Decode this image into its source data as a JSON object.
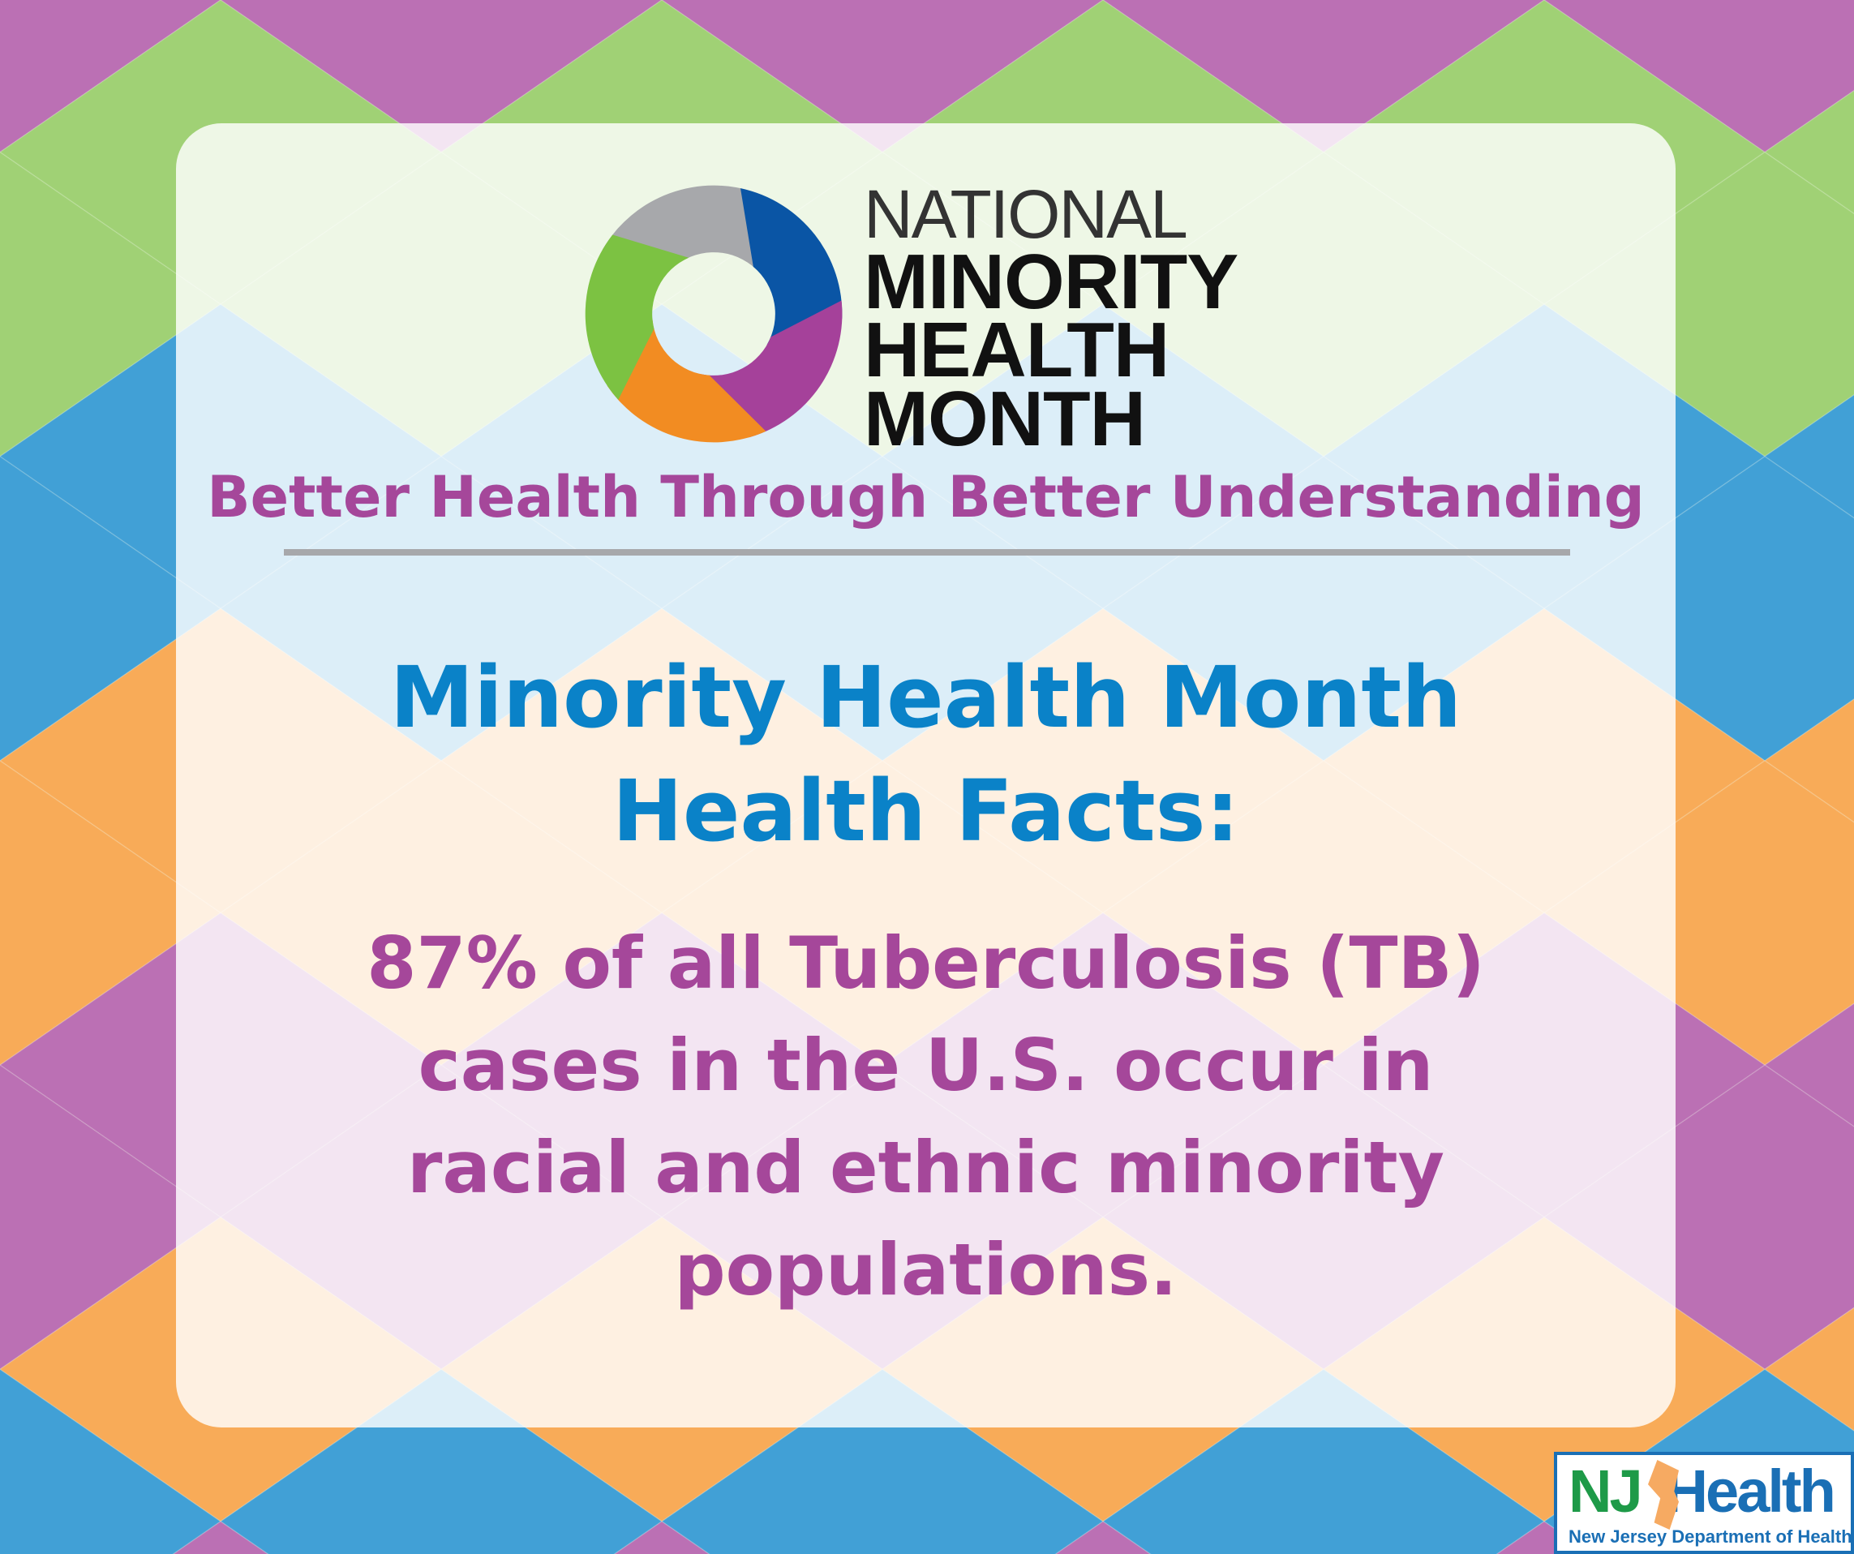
{
  "background": {
    "colors": [
      "#bb70b4",
      "#a0d175",
      "#41a0d6",
      "#f8ab58"
    ]
  },
  "logo": {
    "line1": "NATIONAL",
    "line2": "MINORITY",
    "line3": "HEALTH",
    "line4": "MONTH",
    "ring_colors": [
      "#a7a8ab",
      "#0a55a5",
      "#a5419a",
      "#f28c22",
      "#7cc242"
    ]
  },
  "tagline": "Better Health Through Better Understanding",
  "heading": {
    "line1": "Minority Health Month",
    "line2": "Health Facts:"
  },
  "fact": {
    "line1": "87% of all Tuberculosis (TB)",
    "line2": "cases in the U.S. occur in",
    "line3": "racial and ethnic minority",
    "line4": "populations."
  },
  "nj_logo": {
    "nj": "NJ",
    "health": "Health",
    "subtitle": "New Jersey Department of Health"
  }
}
